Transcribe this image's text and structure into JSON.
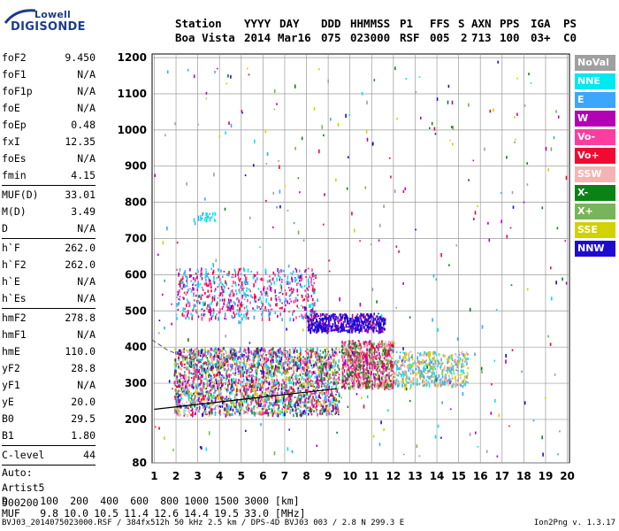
{
  "logo": {
    "line1": "Lowell",
    "line2": "DIGISONDE"
  },
  "header": {
    "col_labels": [
      "Station",
      "YYYY",
      "DAY",
      "DDD",
      "HHMMSS",
      "P1",
      "FFS",
      "S",
      "AXN",
      "PPS",
      "IGA",
      "PS"
    ],
    "col_values": [
      "Boa Vista",
      "2014",
      "Mar16",
      "075",
      "023000",
      "RSF",
      "005",
      "2",
      "713",
      "100",
      "03+",
      "C0"
    ]
  },
  "params_group1": [
    {
      "label": "foF2",
      "value": "9.450"
    },
    {
      "label": "foF1",
      "value": "N/A"
    },
    {
      "label": "foF1p",
      "value": "N/A"
    },
    {
      "label": "foE",
      "value": "N/A"
    },
    {
      "label": "foEp",
      "value": "0.48"
    },
    {
      "label": "fxI",
      "value": "12.35"
    },
    {
      "label": "foEs",
      "value": "N/A"
    },
    {
      "label": "fmin",
      "value": "4.15"
    }
  ],
  "params_group2": [
    {
      "label": "MUF(D)",
      "value": "33.01"
    },
    {
      "label": "M(D)",
      "value": "3.49"
    },
    {
      "label": "D",
      "value": "N/A"
    }
  ],
  "params_group3": [
    {
      "label": "h`F",
      "value": "262.0"
    },
    {
      "label": "h`F2",
      "value": "262.0"
    },
    {
      "label": "h`E",
      "value": "N/A"
    },
    {
      "label": "h`Es",
      "value": "N/A"
    }
  ],
  "params_group4": [
    {
      "label": "hmF2",
      "value": "278.8"
    },
    {
      "label": "hmF1",
      "value": "N/A"
    },
    {
      "label": "hmE",
      "value": "110.0"
    },
    {
      "label": "yF2",
      "value": "28.8"
    },
    {
      "label": "yF1",
      "value": "N/A"
    },
    {
      "label": "yE",
      "value": "20.0"
    },
    {
      "label": "B0",
      "value": "29.5"
    },
    {
      "label": "B1",
      "value": "1.80"
    }
  ],
  "params_group5": [
    {
      "label": "C-level",
      "value": "44"
    }
  ],
  "autoscaling": {
    "line1": "Auto:",
    "line2": "Artist5",
    "line3": "500200"
  },
  "chart_data": {
    "type": "scatter",
    "title": "",
    "xlabel": "",
    "ylabel": "",
    "x_ticks": [
      1,
      2,
      3,
      4,
      5,
      6,
      7,
      8,
      9,
      10,
      11,
      12,
      13,
      14,
      15,
      16,
      17,
      18,
      19,
      20
    ],
    "y_ticks": [
      80,
      200,
      300,
      400,
      500,
      600,
      700,
      800,
      900,
      1000,
      1100,
      1200
    ],
    "xlim": [
      0.9,
      20.1
    ],
    "ylim": [
      80,
      1210
    ],
    "grid": true,
    "legend_placement": "right",
    "legend": [
      {
        "name": "NoVal",
        "color": "#a0a0a0"
      },
      {
        "name": "NNE",
        "color": "#00e8f0"
      },
      {
        "name": "E",
        "color": "#3ca6ff"
      },
      {
        "name": "W",
        "color": "#b400b4"
      },
      {
        "name": "Vo-",
        "color": "#ff3ca0"
      },
      {
        "name": "Vo+",
        "color": "#f00a32"
      },
      {
        "name": "SSW",
        "color": "#f5b4b4"
      },
      {
        "name": "X-",
        "color": "#0a8214"
      },
      {
        "name": "X+",
        "color": "#78b45a"
      },
      {
        "name": "SSE",
        "color": "#d2d200"
      },
      {
        "name": "NNW",
        "color": "#1e0ad2"
      }
    ],
    "profile_line": [
      [
        1.0,
        228
      ],
      [
        9.4,
        285
      ]
    ],
    "dashed_trace": [
      [
        0.9,
        420
      ],
      [
        1.6,
        392
      ],
      [
        2.4,
        372
      ],
      [
        3.2,
        358
      ],
      [
        4.0,
        340
      ]
    ],
    "clusters": [
      {
        "xmin": 1.9,
        "xmax": 9.5,
        "ymin": 215,
        "ymax": 400,
        "count": 2600,
        "colors": [
          "#ff3ca0",
          "#f00a32",
          "#b400b4",
          "#0a8214",
          "#78b45a",
          "#d2d200",
          "#3ca6ff",
          "#00e8f0",
          "#1e0ad2",
          "#f5b4b4"
        ]
      },
      {
        "xmin": 9.6,
        "xmax": 12.0,
        "ymin": 290,
        "ymax": 420,
        "count": 900,
        "colors": [
          "#f00a32",
          "#b400b4",
          "#ff3ca0",
          "#0a8214",
          "#f5b4b4",
          "#78b45a"
        ]
      },
      {
        "xmin": 12.0,
        "xmax": 15.4,
        "ymin": 295,
        "ymax": 390,
        "count": 500,
        "colors": [
          "#d2d200",
          "#f5b4b4",
          "#3ca6ff",
          "#00e8f0",
          "#a0a0a0"
        ]
      },
      {
        "xmin": 8.0,
        "xmax": 11.6,
        "ymin": 445,
        "ymax": 495,
        "count": 520,
        "colors": [
          "#1e0ad2",
          "#1e0ad2",
          "#1e0ad2",
          "#b400b4"
        ]
      },
      {
        "xmin": 2.0,
        "xmax": 8.4,
        "ymin": 480,
        "ymax": 620,
        "count": 650,
        "colors": [
          "#b400b4",
          "#3ca6ff",
          "#ff3ca0",
          "#00e8f0",
          "#f00a32"
        ]
      },
      {
        "xmin": 2.8,
        "xmax": 3.8,
        "ymin": 745,
        "ymax": 775,
        "count": 30,
        "colors": [
          "#00e8f0",
          "#3ca6ff"
        ]
      },
      {
        "xmin": 1.0,
        "xmax": 20.0,
        "ymin": 100,
        "ymax": 1200,
        "count": 320,
        "colors": [
          "#a0a0a0",
          "#0a8214",
          "#b400b4",
          "#3ca6ff",
          "#f00a32",
          "#1e0ad2",
          "#00e8f0",
          "#d2d200",
          "#78b45a"
        ]
      }
    ]
  },
  "bottom": {
    "d_label": "D",
    "d_values": [
      "100",
      "200",
      "400",
      "600",
      "800",
      "1000",
      "1500",
      "3000"
    ],
    "d_unit": "[km]",
    "muf_label": "MUF",
    "muf_values": [
      "9.8",
      "10.0",
      "10.5",
      "11.4",
      "12.6",
      "14.4",
      "19.5",
      "33.0"
    ],
    "muf_unit": "[MHz]"
  },
  "footer": {
    "info": "BVJ03_2014075023000.RSF / 384fx512h 50 kHz 2.5 km / DPS-4D BVJ03 003 / 2.8 N 299.3 E",
    "version": "Ion2Png v. 1.3.17"
  }
}
